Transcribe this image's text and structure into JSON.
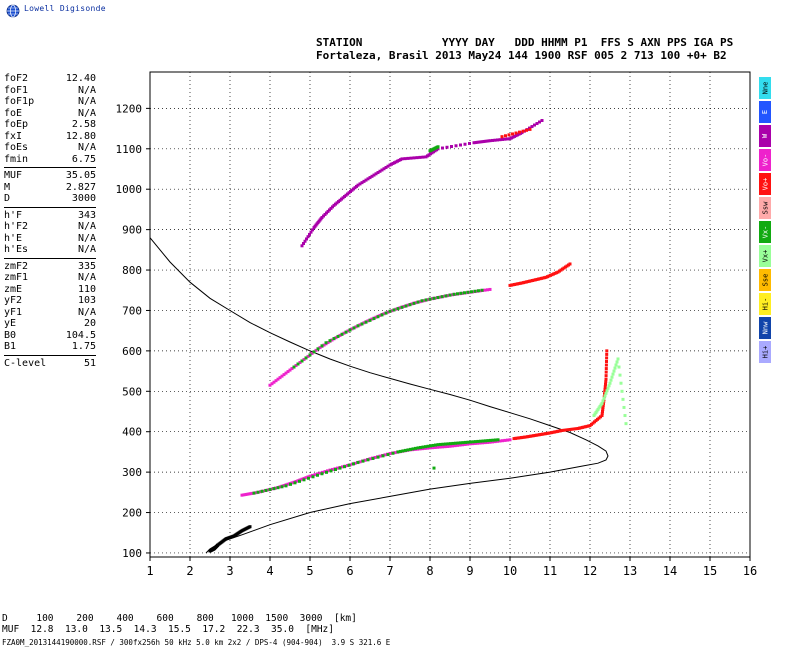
{
  "logo": {
    "text": "Lowell Digisonde",
    "icon": "globe-icon"
  },
  "header": {
    "line1": "STATION            YYYY DAY   DDD HHMM P1  FFS S AXN PPS IGA PS",
    "line2": "Fortaleza, Brasil 2013 May24 144 1900 RSF 005 2 713 100 +0+ B2"
  },
  "params": {
    "group1": [
      {
        "label": "foF2",
        "value": "12.40"
      },
      {
        "label": "foF1",
        "value": "N/A"
      },
      {
        "label": "foF1p",
        "value": "N/A"
      },
      {
        "label": "foE",
        "value": "N/A"
      },
      {
        "label": "foEp",
        "value": "2.58"
      },
      {
        "label": "fxI",
        "value": "12.80"
      },
      {
        "label": "foEs",
        "value": "N/A"
      },
      {
        "label": "fmin",
        "value": "6.75"
      }
    ],
    "group2": [
      {
        "label": "MUF",
        "value": "35.05"
      },
      {
        "label": "M",
        "value": "2.827"
      },
      {
        "label": "D",
        "value": "3000"
      }
    ],
    "group3": [
      {
        "label": "h'F",
        "value": "343"
      },
      {
        "label": "h'F2",
        "value": "N/A"
      },
      {
        "label": "h'E",
        "value": "N/A"
      },
      {
        "label": "h'Es",
        "value": "N/A"
      }
    ],
    "group4": [
      {
        "label": "zmF2",
        "value": "335"
      },
      {
        "label": "zmF1",
        "value": "N/A"
      },
      {
        "label": "zmE",
        "value": "110"
      },
      {
        "label": "yF2",
        "value": "103"
      },
      {
        "label": "yF1",
        "value": "N/A"
      },
      {
        "label": "yE",
        "value": "20"
      },
      {
        "label": "B0",
        "value": "104.5"
      },
      {
        "label": "B1",
        "value": "1.75"
      }
    ],
    "group5": [
      {
        "label": "C-level",
        "value": "51"
      }
    ]
  },
  "legend_bands": [
    {
      "label": "Nne",
      "color": "#33ddee"
    },
    {
      "label": "E",
      "color": "#2255ff"
    },
    {
      "label": "W",
      "color": "#aa00aa"
    },
    {
      "label": "Vo-",
      "color": "#ee22cc"
    },
    {
      "label": "Vo+",
      "color": "#ff1111"
    },
    {
      "label": "Ssw",
      "color": "#ffaaaa"
    },
    {
      "label": "Vx-",
      "color": "#11aa11"
    },
    {
      "label": "Vx+",
      "color": "#99ff99"
    },
    {
      "label": "Sse",
      "color": "#ffbb00"
    },
    {
      "label": "Hi-",
      "color": "#ffee22"
    },
    {
      "label": "Nnw",
      "color": "#1144aa"
    },
    {
      "label": "Hi+",
      "color": "#aaaaff"
    }
  ],
  "muf_table": {
    "d_label": "D",
    "d_values": [
      "100",
      "200",
      "400",
      "600",
      "800",
      "1000",
      "1500",
      "3000"
    ],
    "d_unit": "[km]",
    "muf_label": "MUF",
    "muf_values": [
      "12.8",
      "13.0",
      "13.5",
      "14.3",
      "15.5",
      "17.2",
      "22.3",
      "35.0"
    ],
    "muf_unit": "[MHz]"
  },
  "footer": "FZA0M_2013144190000.RSF / 300fx256h 50 kHz 5.0 km 2x2 / DPS-4 (904-904)  3.9 S 321.6 E",
  "chart_data": {
    "type": "scatter",
    "xlim": [
      1,
      16
    ],
    "ylim": [
      90,
      1290
    ],
    "x_ticks": [
      1,
      2,
      3,
      4,
      5,
      6,
      7,
      8,
      9,
      10,
      11,
      12,
      13,
      14,
      15,
      16
    ],
    "y_ticks": [
      100,
      200,
      300,
      400,
      500,
      600,
      700,
      800,
      900,
      1000,
      1100,
      1200
    ],
    "grid": true,
    "colors": {
      "magenta": "#ee22cc",
      "green": "#11aa11",
      "red": "#ff1111",
      "purple": "#aa00aa",
      "lightgreen": "#99ff99",
      "black": "#000000"
    },
    "series": [
      {
        "color": "magenta",
        "points": [
          [
            3.3,
            243
          ],
          [
            3.7,
            250
          ],
          [
            4.2,
            262
          ],
          [
            4.6,
            275
          ],
          [
            5.0,
            290
          ],
          [
            5.5,
            305
          ],
          [
            6.0,
            318
          ],
          [
            6.5,
            333
          ],
          [
            7.0,
            346
          ],
          [
            7.5,
            355
          ],
          [
            8.0,
            360
          ],
          [
            8.5,
            364
          ],
          [
            9.0,
            370
          ],
          [
            9.5,
            374
          ],
          [
            10.0,
            380
          ]
        ]
      },
      {
        "color": "green",
        "points": [
          [
            3.6,
            248
          ],
          [
            4.4,
            266
          ],
          [
            5.3,
            296
          ],
          [
            6.2,
            324
          ],
          [
            7.2,
            350
          ],
          [
            7.7,
            360
          ],
          [
            8.2,
            368
          ],
          [
            8.7,
            372
          ],
          [
            9.2,
            376
          ],
          [
            9.7,
            380
          ]
        ]
      },
      {
        "color": "red",
        "points": [
          [
            10.1,
            383
          ],
          [
            10.4,
            387
          ],
          [
            10.7,
            392
          ],
          [
            11.0,
            397
          ],
          [
            11.3,
            403
          ],
          [
            11.7,
            408
          ],
          [
            12.0,
            415
          ],
          [
            12.3,
            440
          ],
          [
            12.35,
            480
          ],
          [
            12.4,
            530
          ],
          [
            12.42,
            600
          ]
        ]
      },
      {
        "color": "magenta",
        "points": [
          [
            4.0,
            515
          ],
          [
            4.4,
            545
          ],
          [
            4.8,
            575
          ],
          [
            5.2,
            605
          ],
          [
            5.6,
            630
          ],
          [
            6.0,
            652
          ],
          [
            6.4,
            672
          ],
          [
            6.8,
            690
          ],
          [
            7.2,
            705
          ],
          [
            7.6,
            718
          ],
          [
            8.0,
            728
          ],
          [
            8.5,
            738
          ],
          [
            9.0,
            745
          ],
          [
            9.5,
            752
          ]
        ]
      },
      {
        "color": "green",
        "points": [
          [
            4.6,
            560
          ],
          [
            5.4,
            620
          ],
          [
            6.2,
            662
          ],
          [
            7.0,
            698
          ],
          [
            7.8,
            724
          ],
          [
            8.6,
            740
          ],
          [
            9.3,
            750
          ]
        ]
      },
      {
        "color": "red",
        "points": [
          [
            10.0,
            762
          ],
          [
            10.3,
            768
          ],
          [
            10.6,
            775
          ],
          [
            10.9,
            782
          ],
          [
            11.2,
            795
          ],
          [
            11.5,
            815
          ]
        ]
      },
      {
        "color": "purple",
        "points": [
          [
            4.8,
            860
          ],
          [
            5.1,
            905
          ],
          [
            5.3,
            930
          ],
          [
            5.6,
            960
          ],
          [
            5.9,
            985
          ],
          [
            6.2,
            1010
          ],
          [
            6.6,
            1035
          ],
          [
            7.0,
            1060
          ],
          [
            7.3,
            1075
          ],
          [
            7.9,
            1080
          ],
          [
            8.2,
            1100
          ],
          [
            9.1,
            1115
          ],
          [
            9.5,
            1120
          ],
          [
            10.0,
            1125
          ],
          [
            10.3,
            1140
          ],
          [
            10.8,
            1170
          ]
        ]
      },
      {
        "color": "green",
        "points": [
          [
            8.0,
            1095
          ],
          [
            8.2,
            1105
          ]
        ]
      },
      {
        "color": "red",
        "points": [
          [
            9.8,
            1130
          ],
          [
            10.5,
            1148
          ]
        ]
      },
      {
        "color": "lightgreen",
        "points": [
          [
            12.1,
            440
          ],
          [
            12.3,
            470
          ],
          [
            12.5,
            520
          ],
          [
            12.7,
            580
          ],
          [
            12.9,
            420
          ]
        ]
      },
      {
        "color": "green",
        "points": [
          [
            8.1,
            310
          ]
        ]
      },
      {
        "color": "black",
        "points": [
          [
            2.5,
            105
          ],
          [
            2.6,
            110
          ],
          [
            2.7,
            120
          ],
          [
            2.9,
            135
          ],
          [
            3.1,
            142
          ],
          [
            3.3,
            155
          ],
          [
            3.5,
            165
          ]
        ]
      }
    ],
    "curve": [
      [
        1.0,
        880
      ],
      [
        1.5,
        820
      ],
      [
        2.0,
        770
      ],
      [
        2.5,
        730
      ],
      [
        3.0,
        700
      ],
      [
        3.5,
        670
      ],
      [
        4.0,
        645
      ],
      [
        4.5,
        622
      ],
      [
        5.0,
        600
      ],
      [
        5.5,
        580
      ],
      [
        6.0,
        562
      ],
      [
        6.5,
        546
      ],
      [
        7.0,
        532
      ],
      [
        7.5,
        518
      ],
      [
        8.0,
        505
      ],
      [
        8.5,
        492
      ],
      [
        9.0,
        478
      ],
      [
        9.5,
        462
      ],
      [
        10.0,
        447
      ],
      [
        10.5,
        432
      ],
      [
        11.0,
        415
      ],
      [
        11.5,
        398
      ],
      [
        11.9,
        380
      ],
      [
        12.2,
        365
      ],
      [
        12.4,
        352
      ],
      [
        12.45,
        340
      ],
      [
        12.4,
        330
      ],
      [
        12.2,
        322
      ],
      [
        11.8,
        315
      ],
      [
        11.0,
        300
      ],
      [
        10.0,
        285
      ],
      [
        9.0,
        272
      ],
      [
        8.0,
        258
      ],
      [
        7.0,
        240
      ],
      [
        6.0,
        222
      ],
      [
        5.0,
        200
      ],
      [
        4.0,
        170
      ],
      [
        3.3,
        145
      ],
      [
        2.8,
        128
      ],
      [
        2.5,
        110
      ],
      [
        2.4,
        100
      ]
    ]
  }
}
